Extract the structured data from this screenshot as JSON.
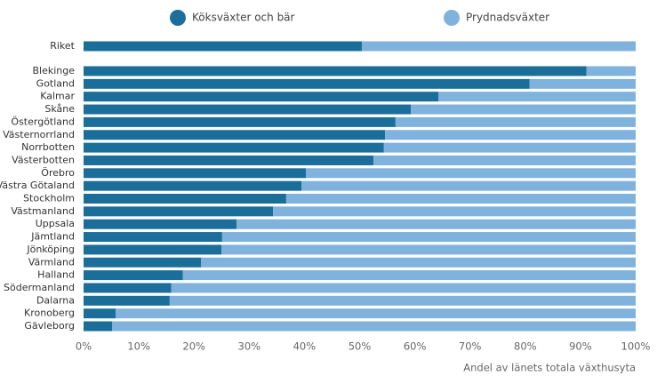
{
  "chart_data": {
    "type": "stacked-barh",
    "categories": [
      "Riket",
      "Blekinge",
      "Gotland",
      "Kalmar",
      "Skåne",
      "Östergötland",
      "Västernorrland",
      "Norrbotten",
      "Västerbotten",
      "Örebro",
      "Västra Götaland",
      "Stockholm",
      "Västmanland",
      "Uppsala",
      "Jämtland",
      "Jönköping",
      "Värmland",
      "Halland",
      "Södermanland",
      "Dalarna",
      "Kronoberg",
      "Gävleborg"
    ],
    "series": [
      {
        "name": "Köksväxter och bär",
        "color": "#1a6e99",
        "values": [
          50.4,
          91.1,
          80.8,
          64.3,
          59.3,
          56.5,
          54.6,
          54.4,
          52.5,
          40.3,
          39.5,
          36.7,
          34.3,
          27.7,
          25.1,
          25.0,
          21.3,
          18.0,
          15.9,
          15.6,
          5.8,
          5.2
        ]
      },
      {
        "name": "Prydnadsväxter",
        "color": "#7fb2dc",
        "values": [
          49.6,
          8.9,
          19.2,
          35.7,
          40.7,
          43.5,
          45.4,
          45.6,
          47.5,
          59.7,
          60.5,
          63.3,
          65.7,
          72.3,
          74.9,
          75.0,
          78.7,
          82.0,
          84.1,
          84.4,
          94.2,
          94.8
        ]
      }
    ],
    "xlim": [
      0,
      100
    ],
    "xticks": [
      {
        "value": 0,
        "label": "0%"
      },
      {
        "value": 10,
        "label": "10%"
      },
      {
        "value": 20,
        "label": "20%"
      },
      {
        "value": 30,
        "label": "30%"
      },
      {
        "value": 40,
        "label": "40%"
      },
      {
        "value": 50,
        "label": "50%"
      },
      {
        "value": 60,
        "label": "60%"
      },
      {
        "value": 70,
        "label": "70%"
      },
      {
        "value": 80,
        "label": "80%"
      },
      {
        "value": 90,
        "label": "90%"
      },
      {
        "value": 100,
        "label": "100%"
      }
    ],
    "x_label": "Andel av länets totala växthusyta"
  }
}
